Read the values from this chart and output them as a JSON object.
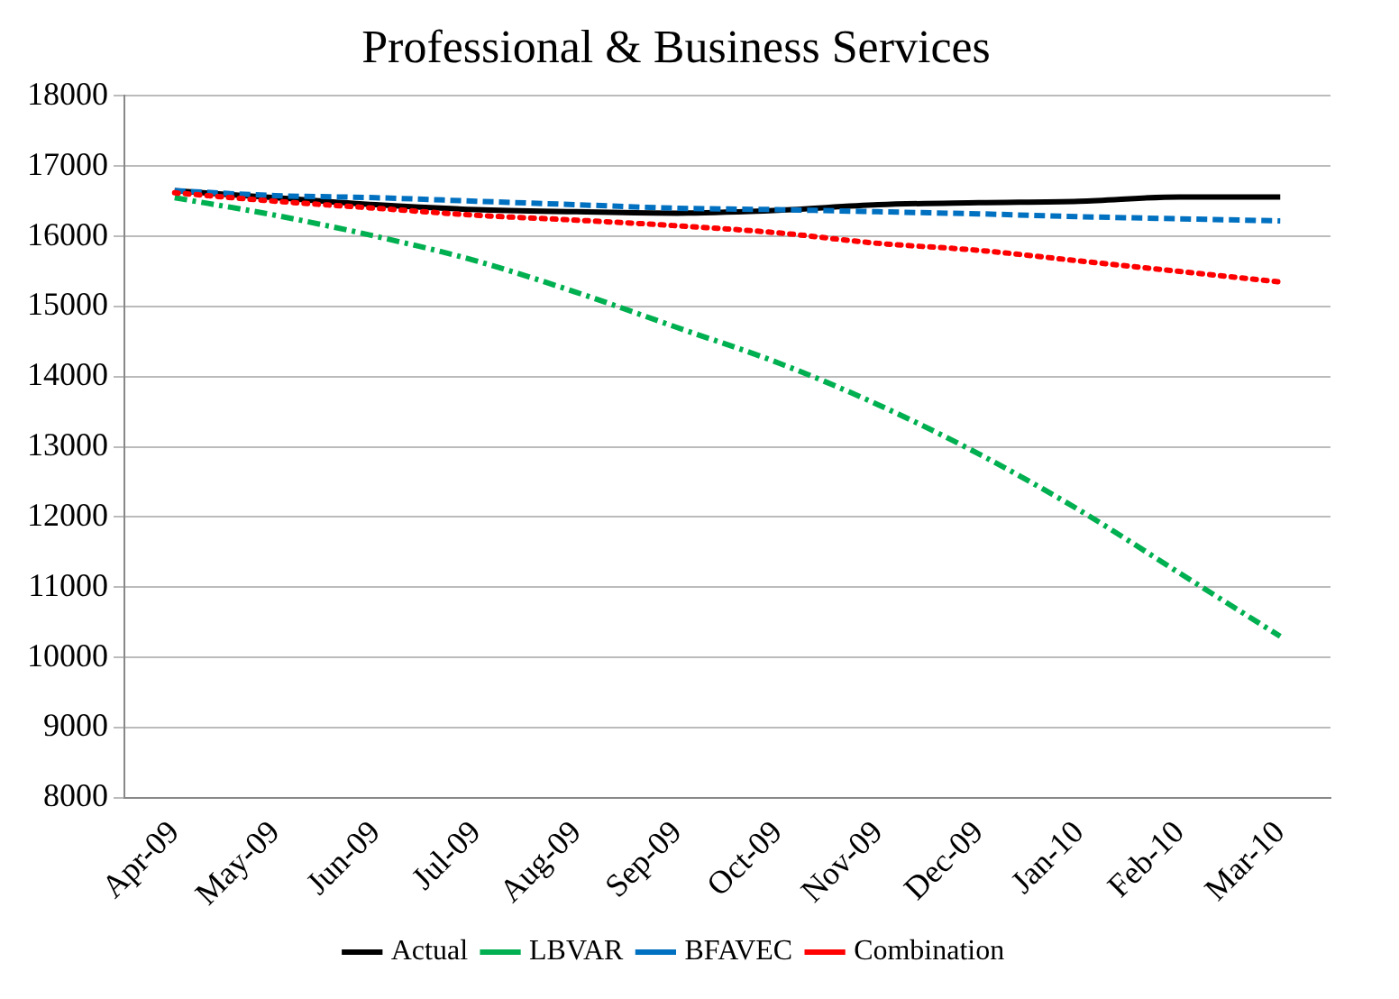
{
  "chart_data": {
    "type": "line",
    "title": "Professional & Business Services",
    "categories": [
      "Apr-09",
      "May-09",
      "Jun-09",
      "Jul-09",
      "Aug-09",
      "Sep-09",
      "Oct-09",
      "Nov-09",
      "Dec-09",
      "Jan-10",
      "Feb-10",
      "Mar-10"
    ],
    "series": [
      {
        "name": "Actual",
        "color": "#000000",
        "line_style": "solid",
        "values": [
          16650,
          16550,
          16450,
          16380,
          16350,
          16330,
          16370,
          16450,
          16480,
          16500,
          16560,
          16560
        ]
      },
      {
        "name": "LBVAR",
        "color": "#00b050",
        "line_style": "dashdot",
        "values": [
          16550,
          16300,
          16000,
          15650,
          15200,
          14700,
          14200,
          13600,
          12900,
          12100,
          11200,
          10300
        ]
      },
      {
        "name": "BFAVEC",
        "color": "#0070c0",
        "line_style": "dashed",
        "values": [
          16650,
          16580,
          16550,
          16500,
          16450,
          16400,
          16380,
          16350,
          16320,
          16280,
          16250,
          16220
        ]
      },
      {
        "name": "Combination",
        "color": "#ff0000",
        "line_style": "dotted",
        "values": [
          16620,
          16500,
          16400,
          16300,
          16230,
          16150,
          16050,
          15900,
          15800,
          15650,
          15500,
          15350
        ]
      }
    ],
    "ylim": [
      8000,
      18000
    ],
    "yticks": [
      8000,
      9000,
      10000,
      11000,
      12000,
      13000,
      14000,
      15000,
      16000,
      17000,
      18000
    ],
    "grid": "y",
    "legend": "bottom",
    "marker": "none"
  }
}
